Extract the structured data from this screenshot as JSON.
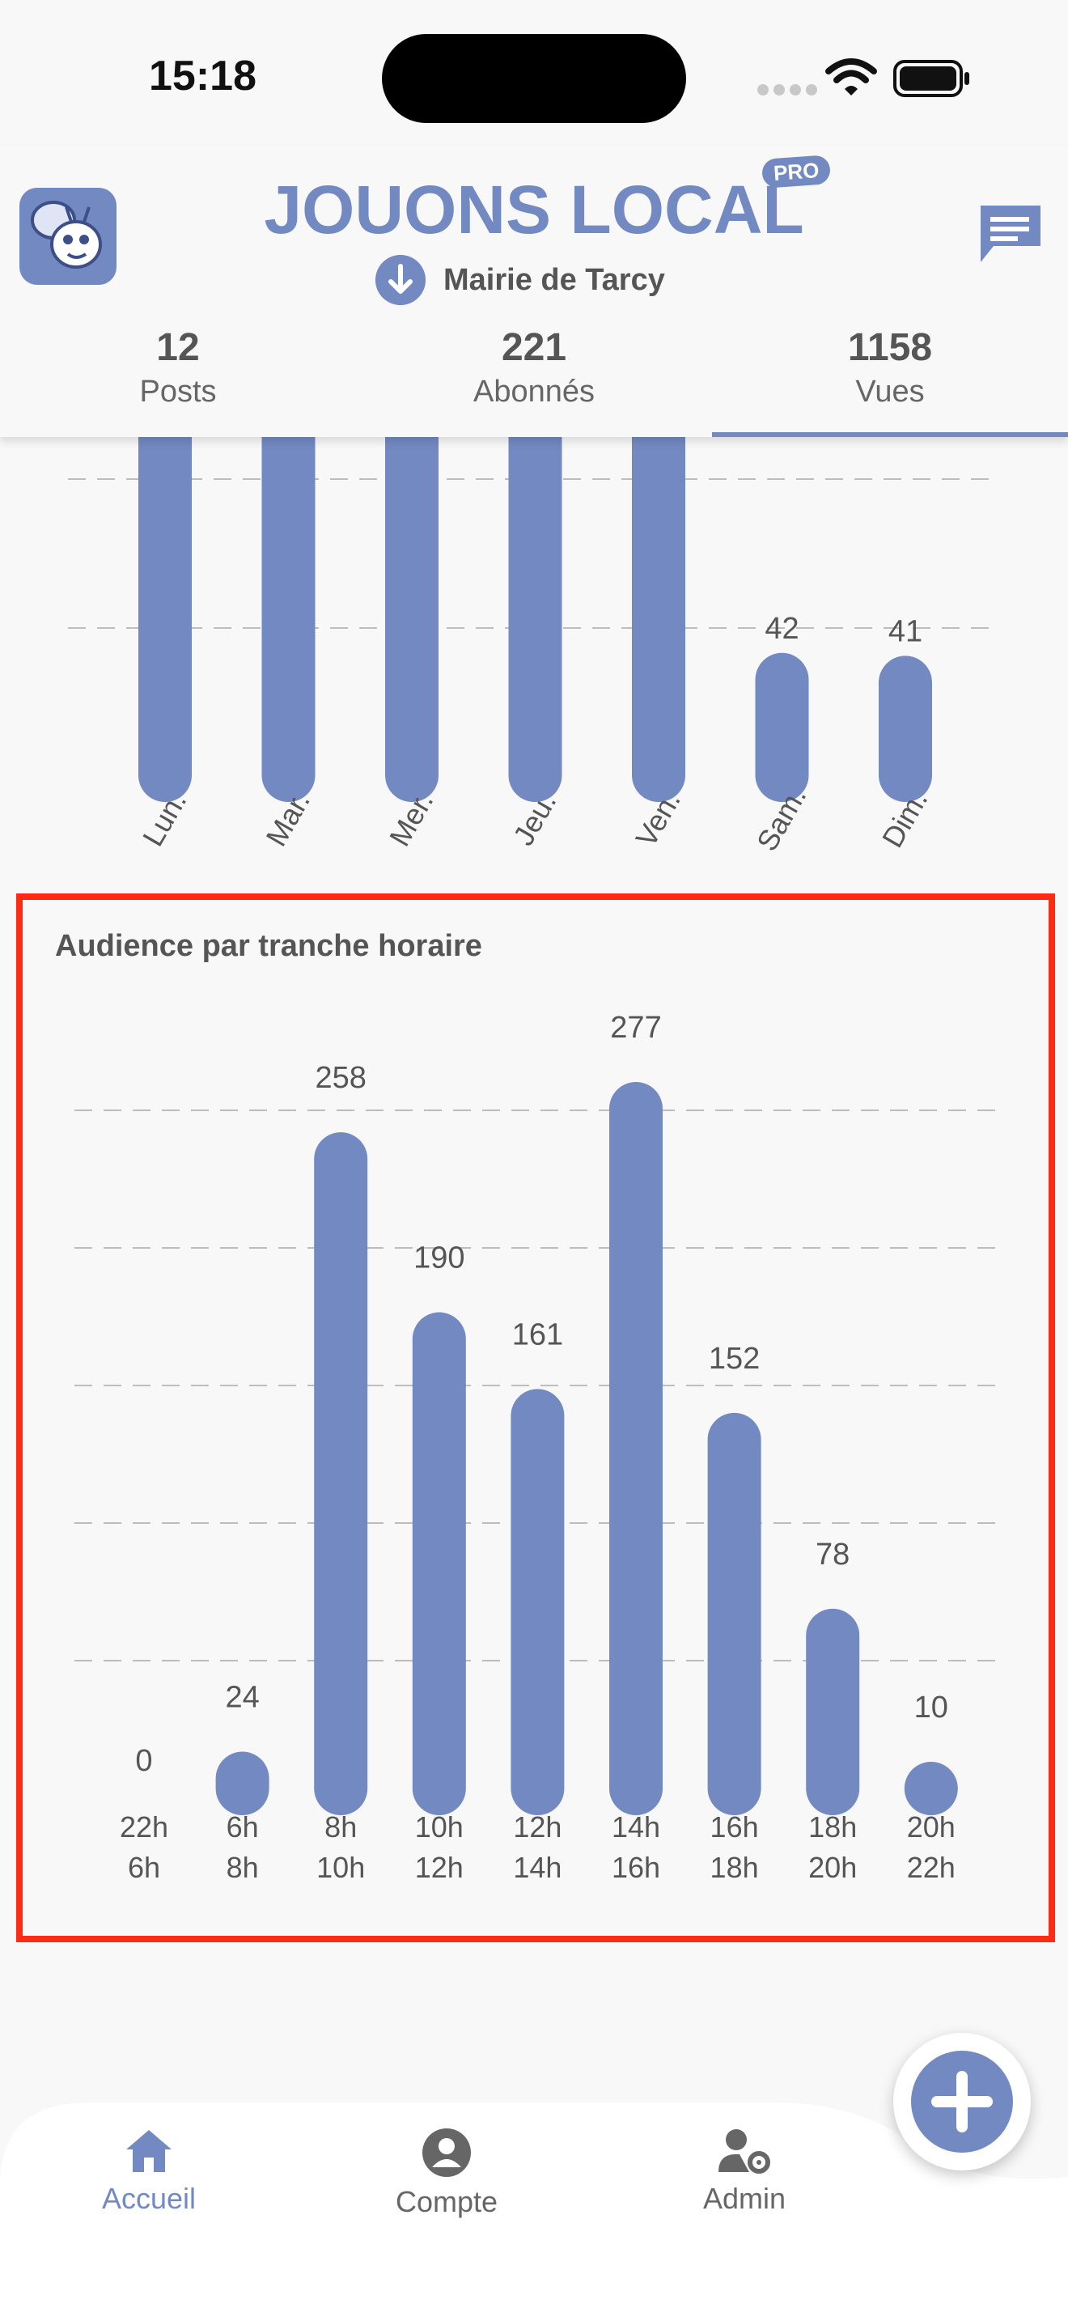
{
  "status_bar": {
    "time": "15:18"
  },
  "header": {
    "brand": {
      "name": "JOUONS LOCAL",
      "badge": "PRO"
    },
    "organization": "Mairie de Tarcy",
    "stats": [
      {
        "value": "12",
        "label": "Posts",
        "active": false
      },
      {
        "value": "221",
        "label": "Abonnés",
        "active": false
      },
      {
        "value": "1158",
        "label": "Vues",
        "active": true
      }
    ]
  },
  "colors": {
    "accent": "#7389c2",
    "highlight_border": "#ff2a12",
    "background": "#f8f8f8"
  },
  "chart_data": [
    {
      "type": "bar",
      "title": "",
      "categories": [
        "Lun.",
        "Mar.",
        "Mer.",
        "Jeu.",
        "Ven.",
        "Sam.",
        "Dim."
      ],
      "values": [
        null,
        null,
        null,
        null,
        null,
        42,
        41
      ],
      "value_labels": [
        "",
        "",
        "",
        "",
        "",
        "42",
        "41"
      ]
    },
    {
      "type": "bar",
      "title": "Audience par tranche horaire",
      "categories": [
        [
          "22h",
          "6h"
        ],
        [
          "6h",
          "8h"
        ],
        [
          "8h",
          "10h"
        ],
        [
          "10h",
          "12h"
        ],
        [
          "12h",
          "14h"
        ],
        [
          "14h",
          "16h"
        ],
        [
          "16h",
          "18h"
        ],
        [
          "18h",
          "20h"
        ],
        [
          "20h",
          "22h"
        ]
      ],
      "values": [
        0,
        24,
        258,
        190,
        161,
        277,
        152,
        78,
        10
      ],
      "ylim": [
        0,
        277
      ],
      "grid": true
    }
  ],
  "bottom_nav": {
    "items": [
      {
        "label": "Accueil",
        "icon": "home-icon",
        "active": true
      },
      {
        "label": "Compte",
        "icon": "account-icon",
        "active": false
      },
      {
        "label": "Admin",
        "icon": "admin-icon",
        "active": false
      }
    ],
    "fab_icon": "plus-icon"
  }
}
